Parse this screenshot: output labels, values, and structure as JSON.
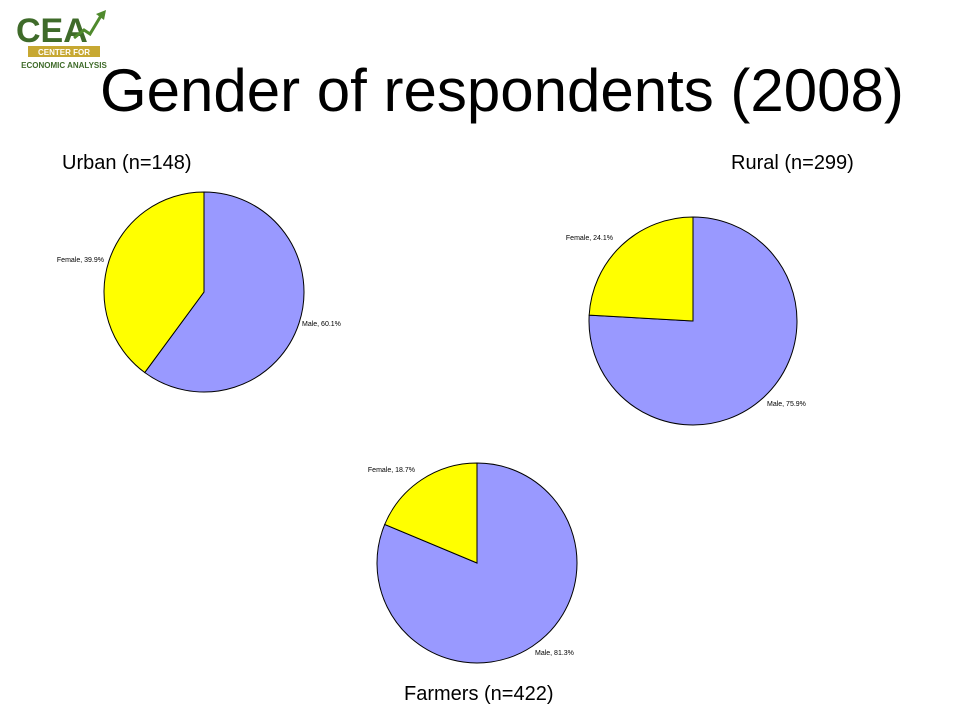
{
  "slide": {
    "title": "Gender of respondents (2008)"
  },
  "logo": {
    "text": "CEA",
    "line1": "CENTER FOR",
    "line2": "ECONOMIC ANALYSIS",
    "colors": {
      "green": "#3f6b2a",
      "gold": "#c7a832",
      "arrow": "#4f8a2d"
    }
  },
  "colors": {
    "male": "#9999ff",
    "female": "#ffff00",
    "outline": "#000000"
  },
  "chart_data": [
    {
      "type": "pie",
      "title": "Urban (n=148)",
      "slices": [
        {
          "label": "Male, 60.1%",
          "value": 60.1
        },
        {
          "label": "Female, 39.9%",
          "value": 39.9
        }
      ]
    },
    {
      "type": "pie",
      "title": "Rural (n=299)",
      "slices": [
        {
          "label": "Male, 75.9%",
          "value": 75.9
        },
        {
          "label": "Female, 24.1%",
          "value": 24.1
        }
      ]
    },
    {
      "type": "pie",
      "title": "Farmers (n=422)",
      "slices": [
        {
          "label": "Male, 81.3%",
          "value": 81.3
        },
        {
          "label": "Female, 18.7%",
          "value": 18.7
        }
      ]
    }
  ]
}
